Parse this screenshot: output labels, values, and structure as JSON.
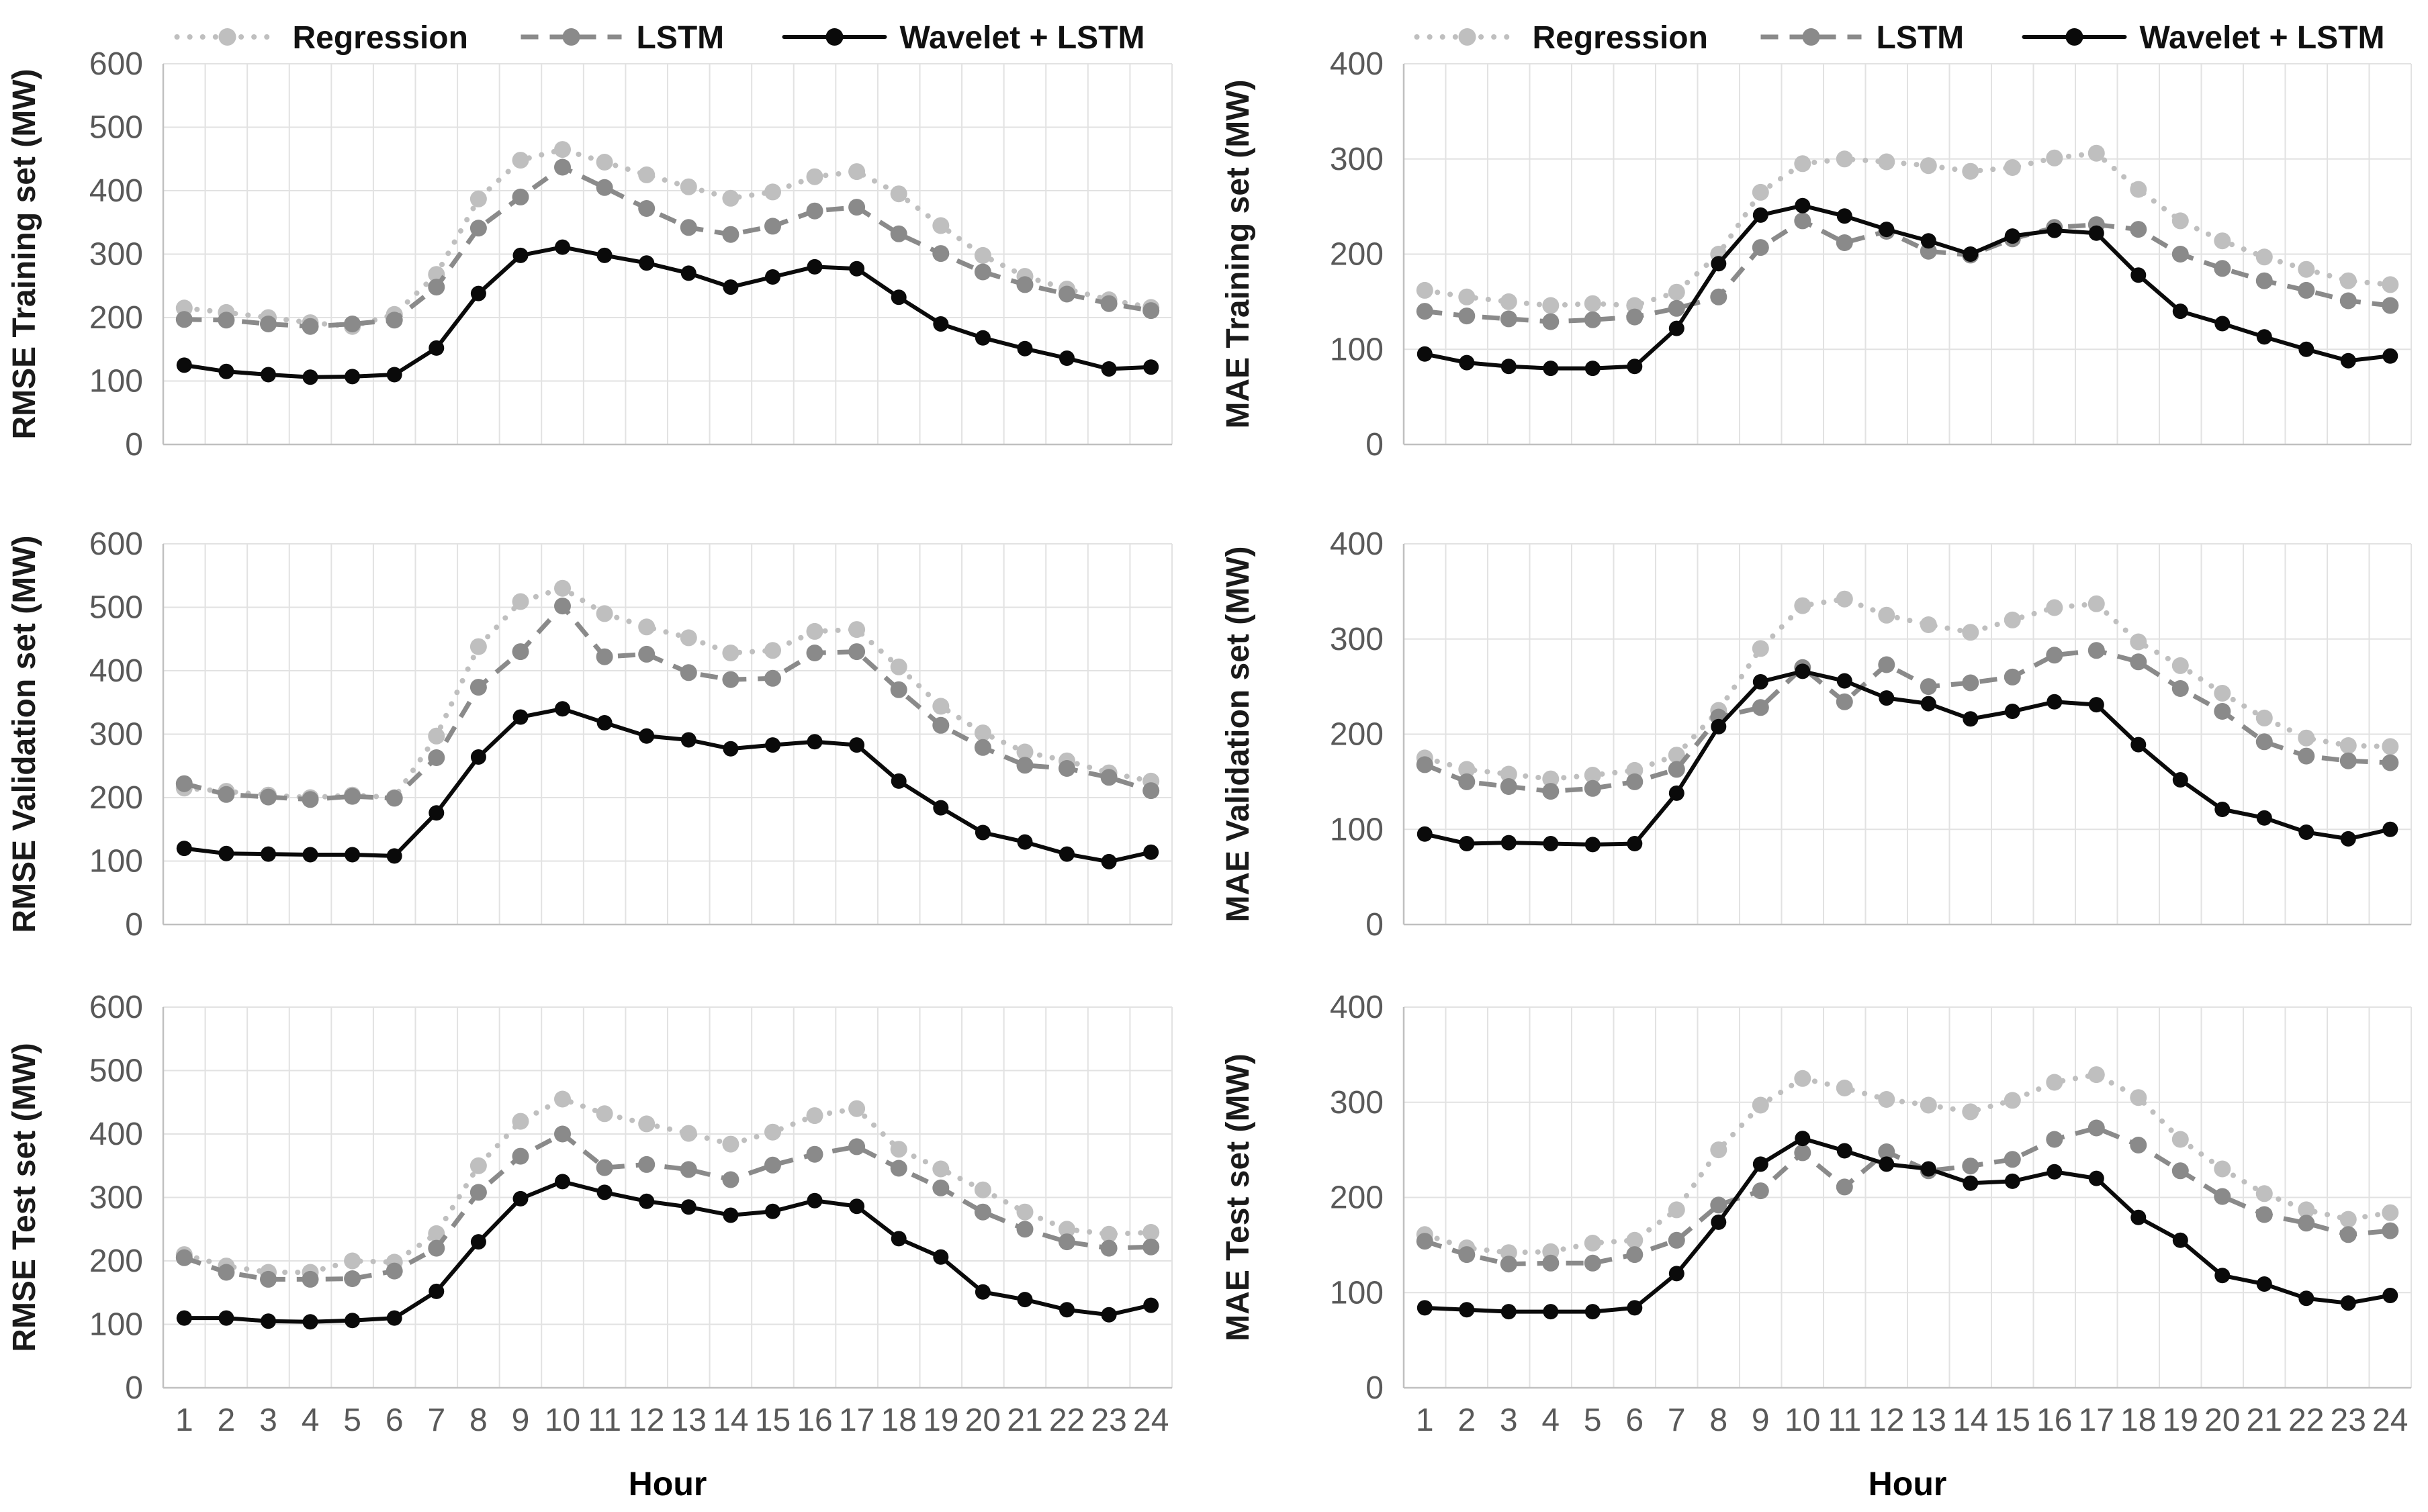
{
  "figure": {
    "background": "#ffffff"
  },
  "legend": {
    "items": [
      {
        "id": "regression",
        "label": "Regression",
        "color": "#bfbfbf",
        "line_style": "dotted"
      },
      {
        "id": "lstm",
        "label": "LSTM",
        "color": "#8a8a8a",
        "line_style": "dashed"
      },
      {
        "id": "wavelet_lstm",
        "label": "Wavelet + LSTM",
        "color": "#0a0a0a",
        "line_style": "solid"
      }
    ],
    "text_color": "#111111"
  },
  "axes": {
    "xlabel": "Hour",
    "x_ticks": [
      1,
      2,
      3,
      4,
      5,
      6,
      7,
      8,
      9,
      10,
      11,
      12,
      13,
      14,
      15,
      16,
      17,
      18,
      19,
      20,
      21,
      22,
      23,
      24
    ],
    "tick_color": "#595959",
    "axis_line_color": "#c0c0c0",
    "gridline_color": "#e2e2e2",
    "title_color": "#1a1a1a"
  },
  "chart_data": [
    {
      "type": "line",
      "id": "rmse-training-set",
      "ylabel": "RMSE Training set (MW)",
      "xlabel": "Hour",
      "ylim": [
        0,
        600
      ],
      "ytick_step": 100,
      "x": [
        1,
        2,
        3,
        4,
        5,
        6,
        7,
        8,
        9,
        10,
        11,
        12,
        13,
        14,
        15,
        16,
        17,
        18,
        19,
        20,
        21,
        22,
        23,
        24
      ],
      "series": [
        {
          "name": "Regression",
          "values": [
            215,
            208,
            200,
            192,
            186,
            205,
            268,
            387,
            448,
            465,
            445,
            425,
            406,
            388,
            398,
            422,
            430,
            395,
            345,
            298,
            265,
            245,
            228,
            216
          ]
        },
        {
          "name": "LSTM",
          "values": [
            197,
            196,
            190,
            186,
            190,
            196,
            248,
            341,
            390,
            437,
            405,
            372,
            342,
            331,
            344,
            368,
            374,
            332,
            301,
            272,
            252,
            237,
            222,
            211
          ]
        },
        {
          "name": "Wavelet + LSTM",
          "values": [
            125,
            115,
            110,
            106,
            107,
            110,
            152,
            238,
            298,
            311,
            298,
            286,
            270,
            248,
            264,
            280,
            277,
            232,
            190,
            168,
            151,
            136,
            119,
            122
          ]
        }
      ]
    },
    {
      "type": "line",
      "id": "mae-training-set",
      "ylabel": "MAE Training set (MW)",
      "xlabel": "Hour",
      "ylim": [
        0,
        400
      ],
      "ytick_step": 100,
      "x": [
        1,
        2,
        3,
        4,
        5,
        6,
        7,
        8,
        9,
        10,
        11,
        12,
        13,
        14,
        15,
        16,
        17,
        18,
        19,
        20,
        21,
        22,
        23,
        24
      ],
      "series": [
        {
          "name": "Regression",
          "values": [
            162,
            155,
            150,
            146,
            148,
            146,
            160,
            200,
            265,
            295,
            300,
            297,
            293,
            287,
            291,
            301,
            306,
            268,
            235,
            214,
            197,
            184,
            172,
            168
          ]
        },
        {
          "name": "LSTM",
          "values": [
            140,
            135,
            132,
            129,
            131,
            134,
            143,
            155,
            207,
            235,
            212,
            224,
            203,
            199,
            216,
            228,
            231,
            226,
            200,
            185,
            172,
            162,
            151,
            146
          ]
        },
        {
          "name": "Wavelet + LSTM",
          "values": [
            95,
            86,
            82,
            80,
            80,
            82,
            122,
            190,
            241,
            251,
            240,
            226,
            214,
            200,
            219,
            225,
            222,
            178,
            140,
            127,
            113,
            100,
            88,
            93
          ]
        }
      ]
    },
    {
      "type": "line",
      "id": "rmse-validation-set",
      "ylabel": "RMSE Validation set (MW)",
      "xlabel": "Hour",
      "ylim": [
        0,
        600
      ],
      "ytick_step": 100,
      "x": [
        1,
        2,
        3,
        4,
        5,
        6,
        7,
        8,
        9,
        10,
        11,
        12,
        13,
        14,
        15,
        16,
        17,
        18,
        19,
        20,
        21,
        22,
        23,
        24
      ],
      "series": [
        {
          "name": "Regression",
          "values": [
            215,
            210,
            204,
            200,
            204,
            200,
            297,
            438,
            509,
            530,
            490,
            469,
            452,
            428,
            432,
            462,
            465,
            406,
            344,
            302,
            272,
            258,
            239,
            226
          ]
        },
        {
          "name": "LSTM",
          "values": [
            222,
            205,
            201,
            197,
            202,
            199,
            263,
            374,
            430,
            502,
            422,
            426,
            397,
            386,
            388,
            428,
            430,
            370,
            314,
            279,
            251,
            246,
            232,
            211
          ]
        },
        {
          "name": "Wavelet + LSTM",
          "values": [
            120,
            112,
            111,
            110,
            110,
            108,
            176,
            264,
            327,
            340,
            318,
            297,
            291,
            277,
            283,
            288,
            283,
            226,
            184,
            145,
            130,
            111,
            99,
            114
          ]
        }
      ]
    },
    {
      "type": "line",
      "id": "mae-validation-set",
      "ylabel": "MAE Validation set (MW)",
      "xlabel": "Hour",
      "ylim": [
        0,
        400
      ],
      "ytick_step": 100,
      "x": [
        1,
        2,
        3,
        4,
        5,
        6,
        7,
        8,
        9,
        10,
        11,
        12,
        13,
        14,
        15,
        16,
        17,
        18,
        19,
        20,
        21,
        22,
        23,
        24
      ],
      "series": [
        {
          "name": "Regression",
          "values": [
            175,
            163,
            158,
            153,
            157,
            162,
            178,
            225,
            290,
            335,
            342,
            325,
            315,
            307,
            320,
            333,
            337,
            297,
            272,
            243,
            217,
            196,
            188,
            187
          ]
        },
        {
          "name": "LSTM",
          "values": [
            168,
            150,
            145,
            140,
            143,
            150,
            163,
            218,
            228,
            270,
            234,
            273,
            250,
            254,
            260,
            283,
            288,
            276,
            248,
            224,
            192,
            177,
            172,
            170
          ]
        },
        {
          "name": "Wavelet + LSTM",
          "values": [
            95,
            85,
            86,
            85,
            84,
            85,
            138,
            208,
            255,
            266,
            256,
            238,
            232,
            216,
            224,
            234,
            231,
            189,
            152,
            121,
            112,
            97,
            90,
            100
          ]
        }
      ]
    },
    {
      "type": "line",
      "id": "rmse-test-set",
      "ylabel": "RMSE Test set (MW)",
      "xlabel": "Hour",
      "ylim": [
        0,
        600
      ],
      "ytick_step": 100,
      "x": [
        1,
        2,
        3,
        4,
        5,
        6,
        7,
        8,
        9,
        10,
        11,
        12,
        13,
        14,
        15,
        16,
        17,
        18,
        19,
        20,
        21,
        22,
        23,
        24
      ],
      "series": [
        {
          "name": "Regression",
          "values": [
            210,
            192,
            182,
            182,
            200,
            198,
            243,
            350,
            420,
            455,
            432,
            416,
            401,
            384,
            403,
            429,
            440,
            376,
            345,
            312,
            277,
            250,
            242,
            245
          ]
        },
        {
          "name": "LSTM",
          "values": [
            205,
            182,
            171,
            171,
            172,
            184,
            220,
            308,
            365,
            400,
            347,
            352,
            344,
            328,
            351,
            368,
            380,
            346,
            315,
            277,
            250,
            230,
            220,
            222
          ]
        },
        {
          "name": "Wavelet + LSTM",
          "values": [
            110,
            110,
            105,
            104,
            106,
            110,
            152,
            230,
            298,
            325,
            308,
            294,
            285,
            272,
            278,
            295,
            286,
            235,
            206,
            151,
            139,
            123,
            115,
            130
          ]
        }
      ]
    },
    {
      "type": "line",
      "id": "mae-test-set",
      "ylabel": "MAE Test set (MW)",
      "xlabel": "Hour",
      "ylim": [
        0,
        400
      ],
      "ytick_step": 100,
      "x": [
        1,
        2,
        3,
        4,
        5,
        6,
        7,
        8,
        9,
        10,
        11,
        12,
        13,
        14,
        15,
        16,
        17,
        18,
        19,
        20,
        21,
        22,
        23,
        24
      ],
      "series": [
        {
          "name": "Regression",
          "values": [
            161,
            147,
            142,
            143,
            152,
            155,
            187,
            250,
            297,
            325,
            315,
            303,
            297,
            290,
            302,
            321,
            329,
            305,
            261,
            230,
            204,
            187,
            177,
            184
          ]
        },
        {
          "name": "LSTM",
          "values": [
            154,
            140,
            130,
            131,
            131,
            140,
            155,
            192,
            207,
            247,
            211,
            248,
            228,
            233,
            240,
            261,
            273,
            255,
            228,
            201,
            182,
            173,
            161,
            165
          ]
        },
        {
          "name": "Wavelet + LSTM",
          "values": [
            84,
            82,
            80,
            80,
            80,
            84,
            120,
            174,
            235,
            262,
            249,
            235,
            230,
            215,
            217,
            227,
            220,
            179,
            155,
            118,
            109,
            94,
            89,
            97
          ]
        }
      ]
    }
  ]
}
